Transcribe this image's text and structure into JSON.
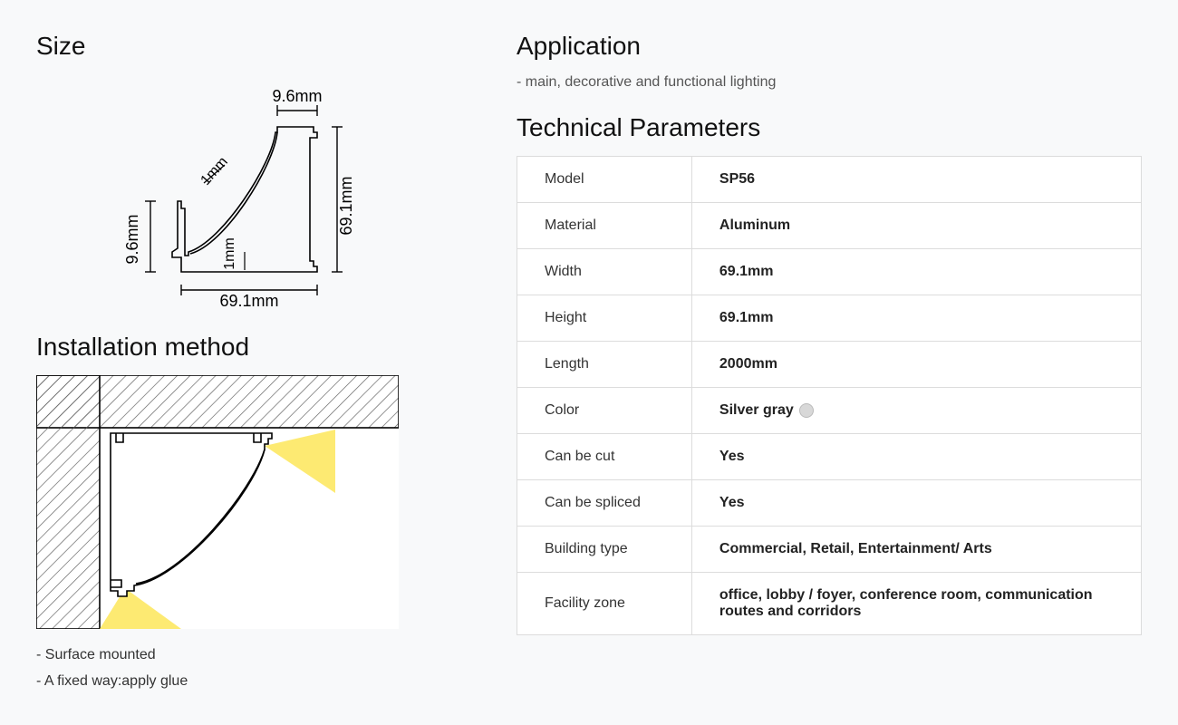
{
  "size": {
    "title": "Size",
    "dims": {
      "top_width": "9.6mm",
      "right_height": "69.1mm",
      "left_height": "9.6mm",
      "bottom_width": "69.1mm",
      "thickness_a": "1mm",
      "thickness_b": "1mm"
    },
    "diagram": {
      "stroke": "#000000",
      "stroke_width": 1.6,
      "label_fontsize": 16
    }
  },
  "installation": {
    "title": "Installation method",
    "bullets": [
      "- Surface mounted",
      "- A fixed way:apply glue"
    ],
    "diagram": {
      "hatch_stroke": "#5a5a5a",
      "hatch_spacing": 10,
      "profile_stroke": "#000000",
      "profile_width": 1.6,
      "light_fill": "#fde96a",
      "background": "#ffffff",
      "border_stroke": "#000000"
    }
  },
  "application": {
    "title": "Application",
    "bullets": [
      "- main, decorative and functional lighting"
    ]
  },
  "tech": {
    "title": "Technical Parameters",
    "rows": [
      {
        "label": "Model",
        "value": "SP56"
      },
      {
        "label": "Material",
        "value": "Aluminum"
      },
      {
        "label": "Width",
        "value": "69.1mm"
      },
      {
        "label": "Height",
        "value": "69.1mm"
      },
      {
        "label": "Length",
        "value": "2000mm"
      },
      {
        "label": "Color",
        "value": "Silver gray",
        "swatch": "#d8d8d8"
      },
      {
        "label": "Can be cut",
        "value": "Yes"
      },
      {
        "label": "Can be spliced",
        "value": "Yes"
      },
      {
        "label": "Building type",
        "value": "Commercial, Retail, Entertainment/ Arts"
      },
      {
        "label": "Facility zone",
        "value": "office, lobby / foyer, conference room, communication routes and corridors"
      }
    ],
    "table_style": {
      "border_color": "#dcdcdc",
      "cell_bg": "#ffffff",
      "label_weight": 400,
      "value_weight": 700,
      "fontsize": 16
    }
  }
}
